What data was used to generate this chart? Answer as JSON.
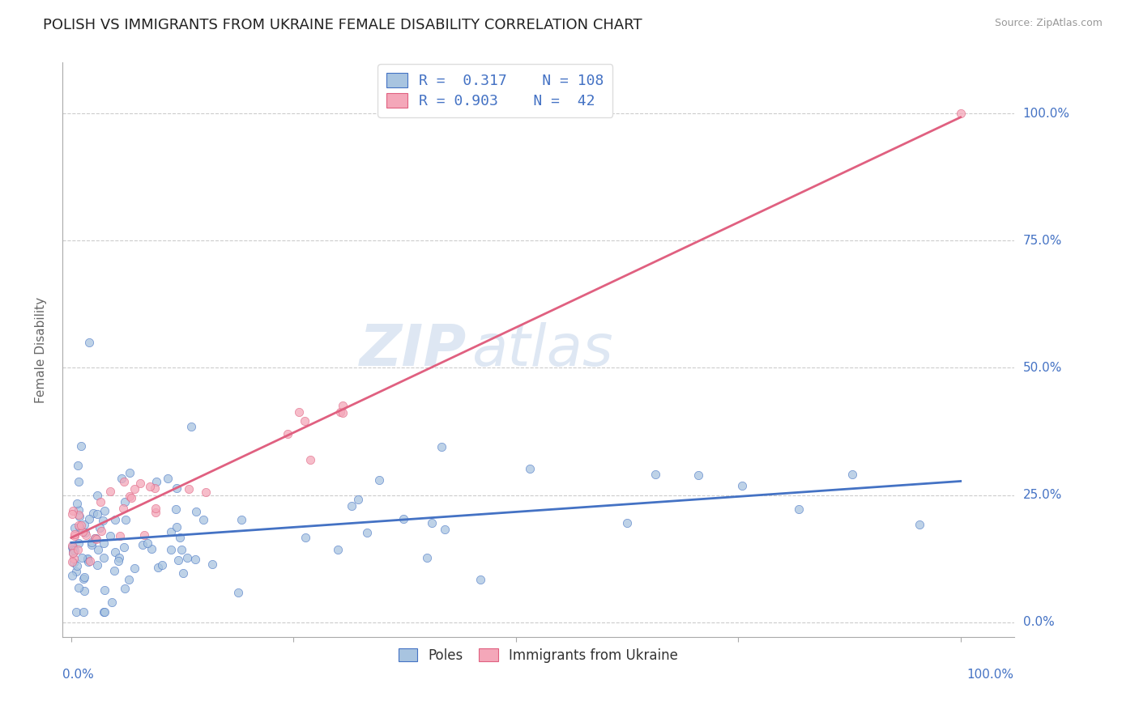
{
  "title": "POLISH VS IMMIGRANTS FROM UKRAINE FEMALE DISABILITY CORRELATION CHART",
  "source": "Source: ZipAtlas.com",
  "ylabel": "Female Disability",
  "legend_labels": [
    "Poles",
    "Immigrants from Ukraine"
  ],
  "r_poles": 0.317,
  "n_poles": 108,
  "r_ukraine": 0.903,
  "n_ukraine": 42,
  "color_poles": "#a8c4e0",
  "color_ukraine": "#f4a7b9",
  "line_color_poles": "#4472c4",
  "line_color_ukraine": "#e06080",
  "background_color": "#ffffff",
  "grid_color": "#cccccc",
  "watermark_zip": "ZIP",
  "watermark_atlas": "atlas",
  "title_color": "#222222",
  "legend_text_color": "#4472c4"
}
